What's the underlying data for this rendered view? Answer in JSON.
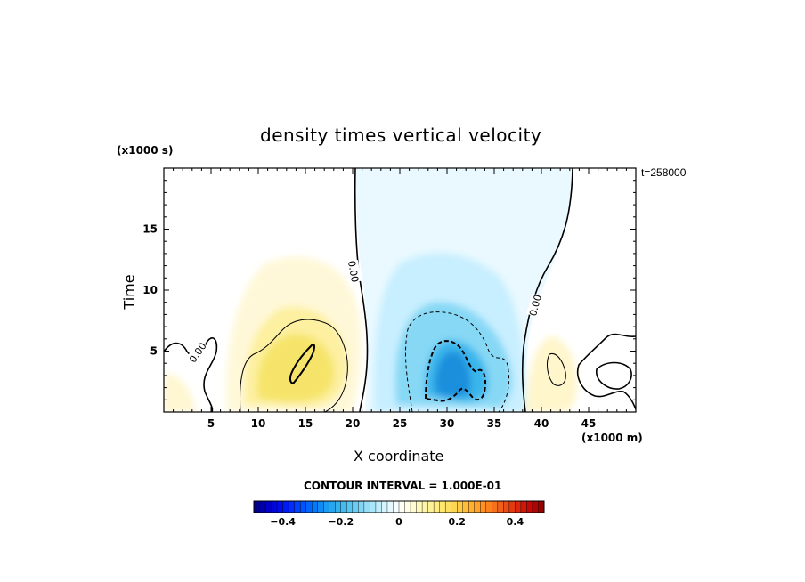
{
  "chart_data": {
    "type": "heatmap",
    "title": "density times vertical velocity",
    "xlabel": "X coordinate",
    "ylabel": "Time",
    "x_unit_label": "(x1000 m)",
    "y_unit_label": "(x1000 s)",
    "time_stamp": "t=258000",
    "xlim": [
      0,
      50
    ],
    "ylim": [
      0,
      20
    ],
    "x_ticks": [
      5,
      10,
      15,
      20,
      25,
      30,
      35,
      40,
      45
    ],
    "y_ticks": [
      5,
      10,
      15
    ],
    "contour_interval_text": "CONTOUR INTERVAL = 1.000E-01",
    "contour_labels": [
      "0.00",
      "0.00",
      "0.00"
    ],
    "colorbar": {
      "range": [
        -0.5,
        0.5
      ],
      "step": 0.05,
      "tick_values": [
        -0.4,
        -0.2,
        0,
        0.2,
        0.4
      ],
      "tick_labels": [
        "−0.4",
        "−0.2",
        "0",
        "0.2",
        "0.4"
      ]
    },
    "features": [
      {
        "name": "positive lobe",
        "center": [
          14,
          3.5
        ],
        "max": 0.18
      },
      {
        "name": "negative lobe",
        "center": [
          30.5,
          3.5
        ],
        "min": -0.22
      },
      {
        "name": "weak negative region",
        "x_range": [
          21,
          43
        ],
        "y_range": [
          0,
          20
        ],
        "value": -0.03
      },
      {
        "name": "weak positive lobe",
        "center": [
          41,
          3
        ],
        "max": 0.05
      }
    ]
  }
}
